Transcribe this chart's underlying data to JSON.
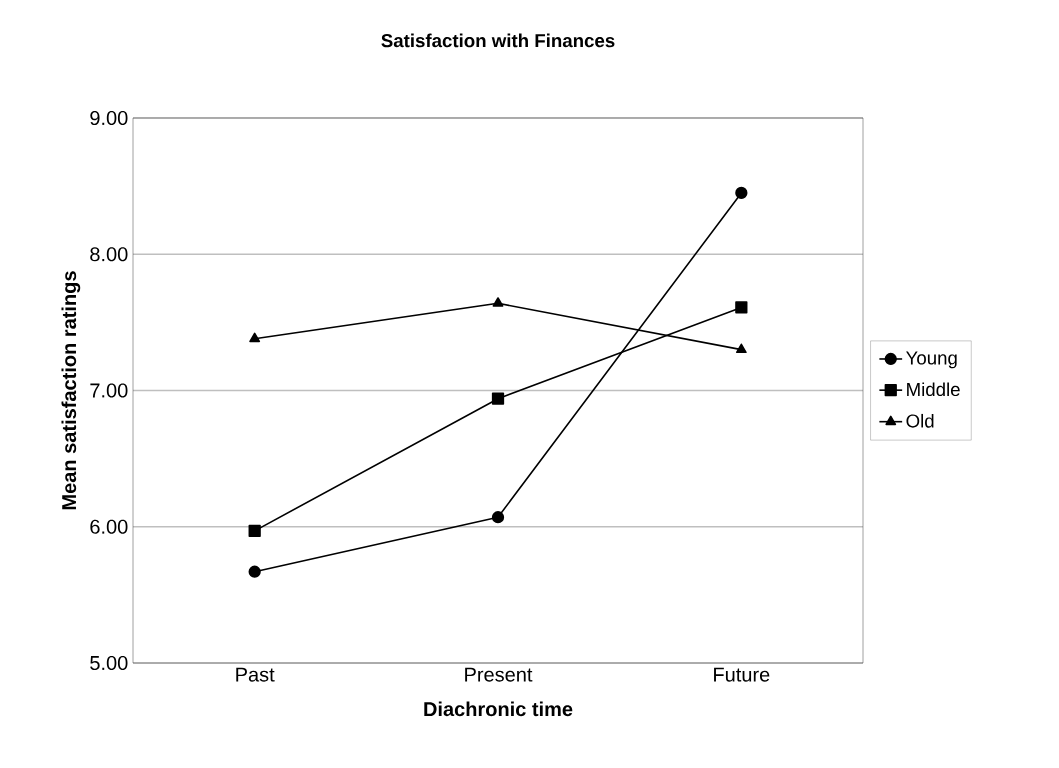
{
  "chart_data": {
    "type": "line",
    "title": "Satisfaction with Finances",
    "xlabel": "Diachronic time",
    "ylabel": "Mean satisfaction ratings",
    "categories": [
      "Past",
      "Present",
      "Future"
    ],
    "series": [
      {
        "name": "Young",
        "color": "#000000",
        "marker": "circle",
        "values": [
          5.67,
          6.07,
          8.45
        ]
      },
      {
        "name": "Middle",
        "color": "#000000",
        "marker": "square",
        "values": [
          5.97,
          6.94,
          7.61
        ]
      },
      {
        "name": "Old",
        "color": "#000000",
        "marker": "triangle",
        "values": [
          7.38,
          7.64,
          7.3
        ]
      }
    ],
    "ylim": [
      5,
      9
    ],
    "yticks": [
      {
        "value": 5,
        "label": "5.00"
      },
      {
        "value": 6,
        "label": "6.00"
      },
      {
        "value": 7,
        "label": "7.00"
      },
      {
        "value": 8,
        "label": "8.00"
      },
      {
        "value": 9,
        "label": "9.00"
      }
    ],
    "grid": "y",
    "legend": "right",
    "line_style": "solid"
  }
}
